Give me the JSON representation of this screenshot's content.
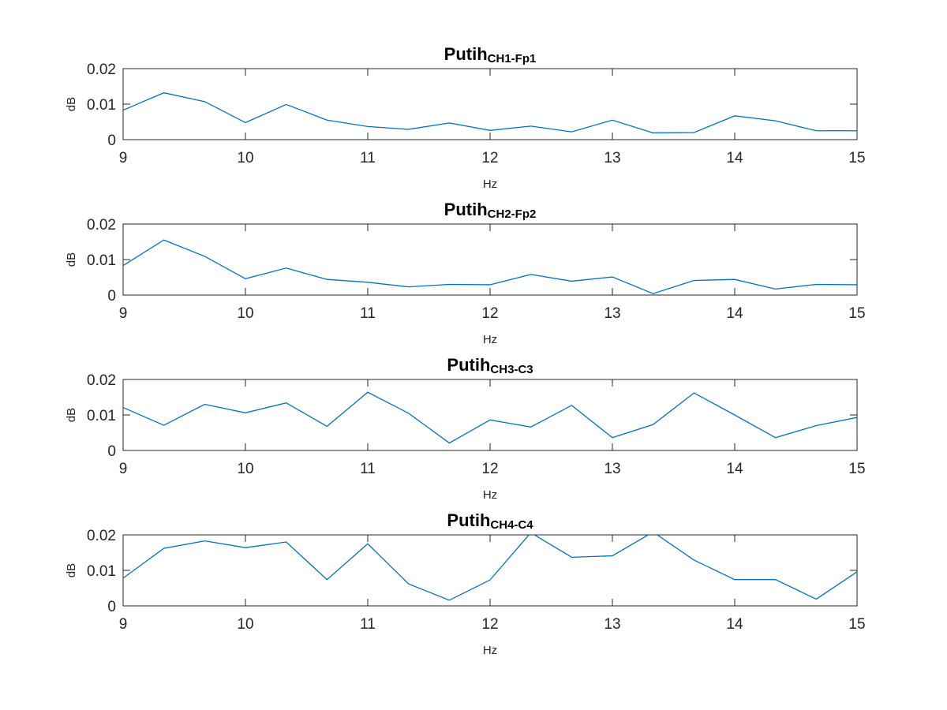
{
  "chart_data": [
    {
      "type": "line",
      "title": "Putih",
      "title_subscript": "CH1-Fp1",
      "xlabel": "Hz",
      "ylabel": "dB",
      "xlim": [
        9,
        15
      ],
      "ylim": [
        0,
        0.02
      ],
      "xticks": [
        "9",
        "10",
        "11",
        "12",
        "13",
        "14",
        "15"
      ],
      "yticks": [
        "0",
        "0.01",
        "0.02"
      ],
      "grid": false,
      "color": "#0072bd",
      "x": [
        9,
        9.333,
        9.667,
        10,
        10.333,
        10.667,
        11,
        11.333,
        11.667,
        12,
        12.333,
        12.667,
        13,
        13.333,
        13.667,
        14,
        14.333,
        14.667,
        15
      ],
      "y": [
        0.0083,
        0.0132,
        0.0107,
        0.0048,
        0.0099,
        0.0055,
        0.0037,
        0.0029,
        0.0047,
        0.0026,
        0.0038,
        0.0022,
        0.0055,
        0.0019,
        0.002,
        0.0067,
        0.0053,
        0.0025,
        0.0025
      ]
    },
    {
      "type": "line",
      "title": "Putih",
      "title_subscript": "CH2-Fp2",
      "xlabel": "Hz",
      "ylabel": "dB",
      "xlim": [
        9,
        15
      ],
      "ylim": [
        0,
        0.02
      ],
      "xticks": [
        "9",
        "10",
        "11",
        "12",
        "13",
        "14",
        "15"
      ],
      "yticks": [
        "0",
        "0.01",
        "0.02"
      ],
      "grid": false,
      "color": "#0072bd",
      "x": [
        9,
        9.333,
        9.667,
        10,
        10.333,
        10.667,
        11,
        11.333,
        11.667,
        12,
        12.333,
        12.667,
        13,
        13.333,
        13.667,
        14,
        14.333,
        14.667,
        15
      ],
      "y": [
        0.0083,
        0.0155,
        0.0109,
        0.0046,
        0.0076,
        0.0044,
        0.0036,
        0.0023,
        0.003,
        0.0029,
        0.0058,
        0.0039,
        0.0051,
        0.0004,
        0.0041,
        0.0044,
        0.0017,
        0.003,
        0.0029
      ]
    },
    {
      "type": "line",
      "title": "Putih",
      "title_subscript": "CH3-C3",
      "xlabel": "Hz",
      "ylabel": "dB",
      "xlim": [
        9,
        15
      ],
      "ylim": [
        0,
        0.02
      ],
      "xticks": [
        "9",
        "10",
        "11",
        "12",
        "13",
        "14",
        "15"
      ],
      "yticks": [
        "0",
        "0.01",
        "0.02"
      ],
      "grid": false,
      "color": "#0072bd",
      "x": [
        9,
        9.333,
        9.667,
        10,
        10.333,
        10.667,
        11,
        11.333,
        11.667,
        12,
        12.333,
        12.667,
        13,
        13.333,
        13.667,
        14,
        14.333,
        14.667,
        15
      ],
      "y": [
        0.0121,
        0.0071,
        0.013,
        0.0106,
        0.0134,
        0.0068,
        0.0164,
        0.0105,
        0.0021,
        0.0086,
        0.0066,
        0.0127,
        0.0036,
        0.0073,
        0.0162,
        0.01,
        0.0036,
        0.007,
        0.0093
      ]
    },
    {
      "type": "line",
      "title": "Putih",
      "title_subscript": "CH4-C4",
      "xlabel": "Hz",
      "ylabel": "dB",
      "xlim": [
        9,
        15
      ],
      "ylim": [
        0,
        0.02
      ],
      "xticks": [
        "9",
        "10",
        "11",
        "12",
        "13",
        "14",
        "15"
      ],
      "yticks": [
        "0",
        "0.01",
        "0.02"
      ],
      "grid": false,
      "color": "#0072bd",
      "x": [
        9,
        9.333,
        9.667,
        10,
        10.333,
        10.667,
        11,
        11.333,
        11.667,
        12,
        12.333,
        12.667,
        13,
        13.333,
        13.667,
        14,
        14.333,
        14.667,
        15
      ],
      "y": [
        0.0078,
        0.0162,
        0.0183,
        0.0164,
        0.018,
        0.0074,
        0.0175,
        0.0062,
        0.0016,
        0.0073,
        0.0206,
        0.0137,
        0.0141,
        0.0208,
        0.0129,
        0.0074,
        0.0074,
        0.0019,
        0.0096
      ]
    }
  ]
}
